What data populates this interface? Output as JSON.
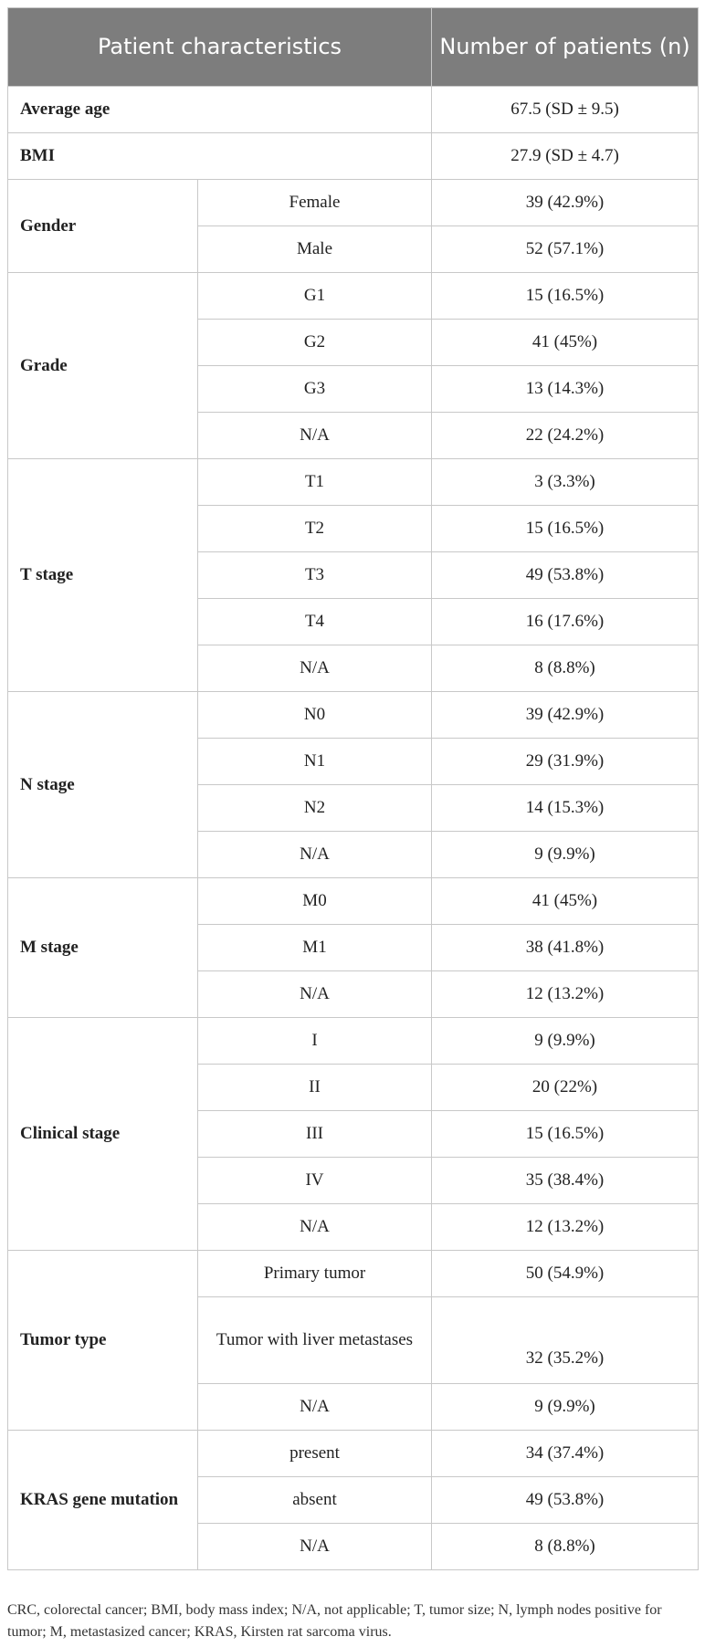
{
  "table": {
    "headers": [
      "Patient characteristics",
      "Number of patients (n)"
    ],
    "single_rows": [
      {
        "label": "Average age",
        "value": "67.5 (SD ± 9.5)"
      },
      {
        "label": "BMI",
        "value": "27.9 (SD ± 4.7)"
      }
    ],
    "groups": [
      {
        "label": "Gender",
        "rows": [
          {
            "sub": "Female",
            "value": "39 (42.9%)"
          },
          {
            "sub": "Male",
            "value": "52 (57.1%)"
          }
        ]
      },
      {
        "label": "Grade",
        "rows": [
          {
            "sub": "G1",
            "value": "15 (16.5%)"
          },
          {
            "sub": "G2",
            "value": "41 (45%)"
          },
          {
            "sub": "G3",
            "value": "13 (14.3%)"
          },
          {
            "sub": "N/A",
            "value": "22 (24.2%)"
          }
        ]
      },
      {
        "label": "T stage",
        "rows": [
          {
            "sub": "T1",
            "value": "3 (3.3%)"
          },
          {
            "sub": "T2",
            "value": "15 (16.5%)"
          },
          {
            "sub": "T3",
            "value": "49 (53.8%)"
          },
          {
            "sub": "T4",
            "value": "16 (17.6%)"
          },
          {
            "sub": "N/A",
            "value": "8 (8.8%)"
          }
        ]
      },
      {
        "label": "N stage",
        "rows": [
          {
            "sub": "N0",
            "value": "39 (42.9%)"
          },
          {
            "sub": "N1",
            "value": "29 (31.9%)"
          },
          {
            "sub": "N2",
            "value": "14 (15.3%)"
          },
          {
            "sub": "N/A",
            "value": "9 (9.9%)"
          }
        ]
      },
      {
        "label": "M stage",
        "rows": [
          {
            "sub": "M0",
            "value": "41 (45%)"
          },
          {
            "sub": "M1",
            "value": "38 (41.8%)"
          },
          {
            "sub": "N/A",
            "value": "12 (13.2%)"
          }
        ]
      },
      {
        "label": "Clinical stage",
        "rows": [
          {
            "sub": "I",
            "value": "9 (9.9%)"
          },
          {
            "sub": "II",
            "value": "20 (22%)"
          },
          {
            "sub": "III",
            "value": "15 (16.5%)"
          },
          {
            "sub": "IV",
            "value": "35 (38.4%)"
          },
          {
            "sub": "N/A",
            "value": "12 (13.2%)"
          }
        ]
      },
      {
        "label": "Tumor type",
        "rows": [
          {
            "sub": "Primary tumor",
            "value": "50 (54.9%)"
          },
          {
            "sub": "Tumor with liver metastases",
            "value": "32 (35.2%)"
          },
          {
            "sub": "N/A",
            "value": "9 (9.9%)"
          }
        ]
      },
      {
        "label": "KRAS gene mutation",
        "rows": [
          {
            "sub": "present",
            "value": "34 (37.4%)"
          },
          {
            "sub": "absent",
            "value": "49 (53.8%)"
          },
          {
            "sub": "N/A",
            "value": "8 (8.8%)"
          }
        ]
      }
    ]
  },
  "footnote": "CRC, colorectal cancer; BMI, body mass index; N/A, not applicable; T, tumor size; N, lymph nodes positive for tumor; M, metastasized cancer; KRAS, Kirsten rat sarcoma virus."
}
